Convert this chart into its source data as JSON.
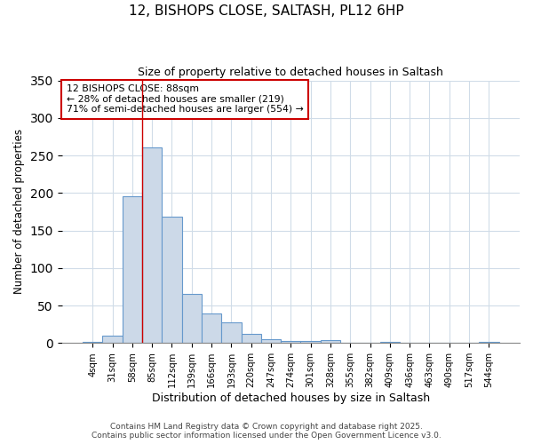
{
  "title1": "12, BISHOPS CLOSE, SALTASH, PL12 6HP",
  "title2": "Size of property relative to detached houses in Saltash",
  "xlabel": "Distribution of detached houses by size in Saltash",
  "ylabel": "Number of detached properties",
  "categories": [
    "4sqm",
    "31sqm",
    "58sqm",
    "85sqm",
    "112sqm",
    "139sqm",
    "166sqm",
    "193sqm",
    "220sqm",
    "247sqm",
    "274sqm",
    "301sqm",
    "328sqm",
    "355sqm",
    "382sqm",
    "409sqm",
    "436sqm",
    "463sqm",
    "490sqm",
    "517sqm",
    "544sqm"
  ],
  "values": [
    2,
    10,
    196,
    261,
    168,
    65,
    40,
    28,
    12,
    5,
    3,
    3,
    4,
    1,
    0,
    2,
    0,
    0,
    0,
    0,
    2
  ],
  "bar_color": "#ccd9e8",
  "bar_edge_color": "#6699cc",
  "vline_index": 3,
  "vline_color": "#cc0000",
  "annotation_line1": "12 BISHOPS CLOSE: 88sqm",
  "annotation_line2": "← 28% of detached houses are smaller (219)",
  "annotation_line3": "71% of semi-detached houses are larger (554) →",
  "annotation_box_color": "#ffffff",
  "annotation_box_edge": "#cc0000",
  "ylim": [
    0,
    350
  ],
  "yticks": [
    0,
    50,
    100,
    150,
    200,
    250,
    300,
    350
  ],
  "footer1": "Contains HM Land Registry data © Crown copyright and database right 2025.",
  "footer2": "Contains public sector information licensed under the Open Government Licence v3.0.",
  "bg_color": "#ffffff",
  "plot_bg_color": "#ffffff",
  "grid_color": "#d0dce8"
}
